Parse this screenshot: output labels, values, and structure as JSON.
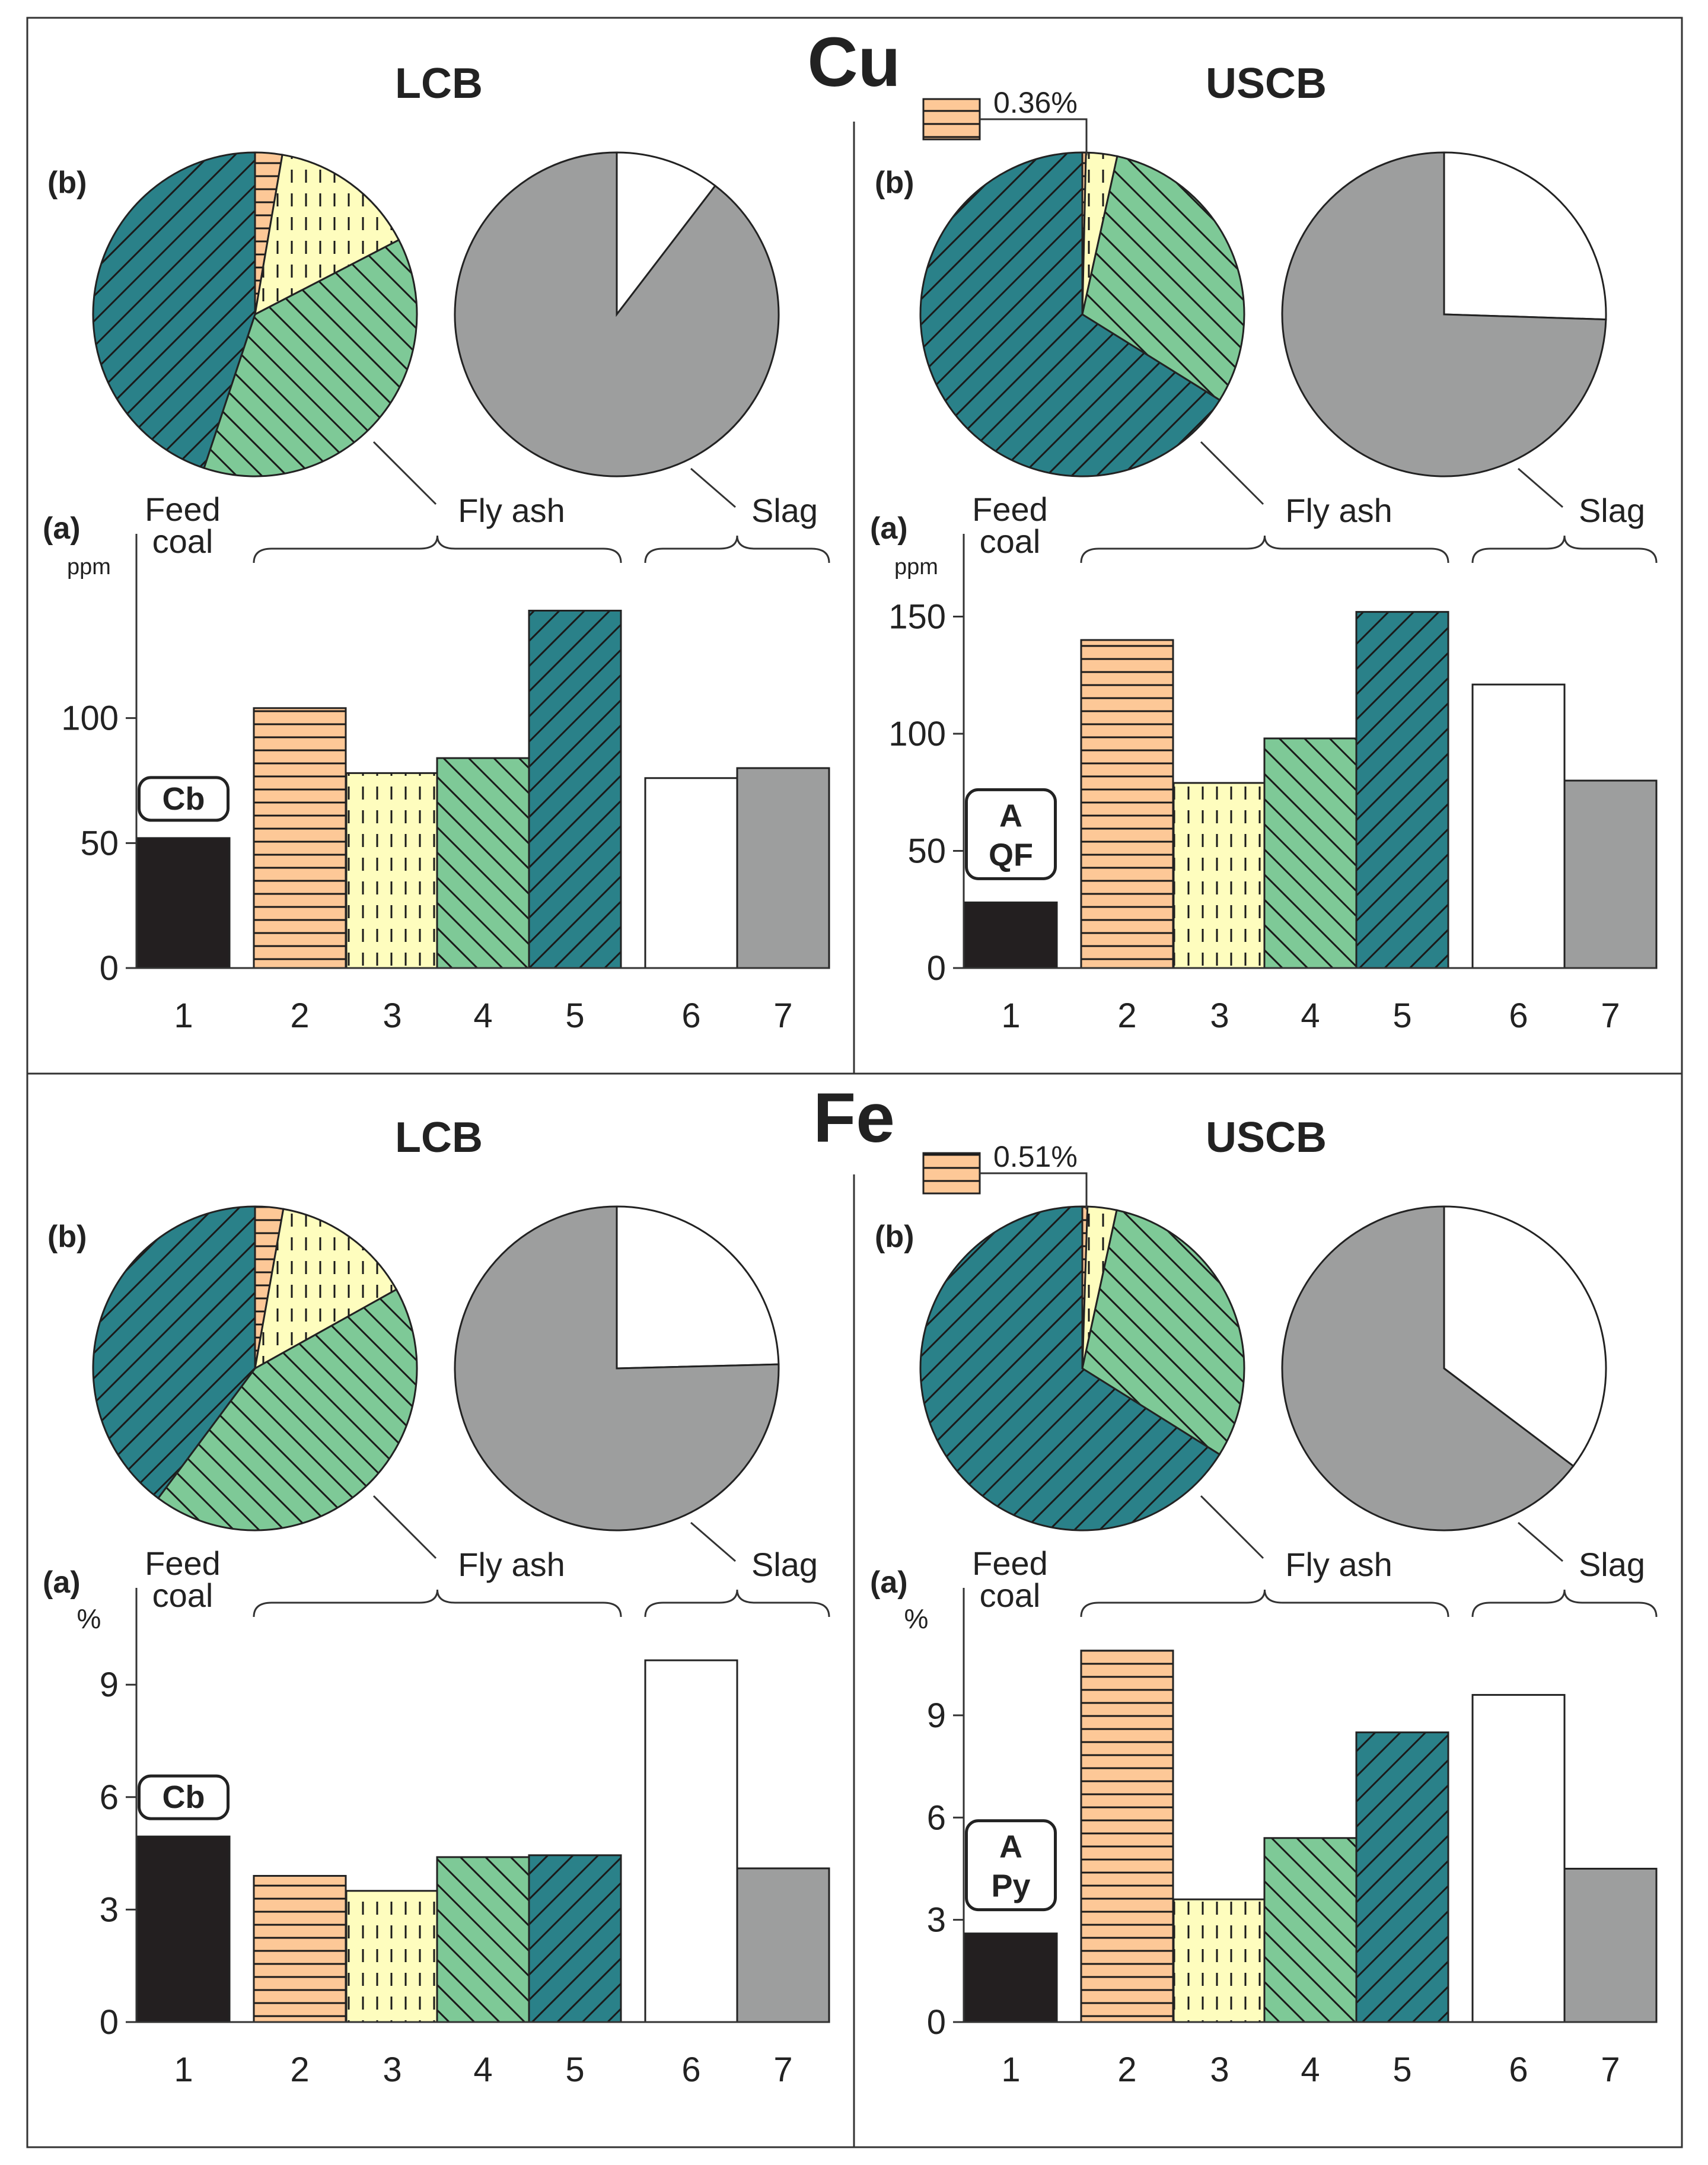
{
  "figure": {
    "sections": [
      {
        "element": "Cu",
        "regions": [
          "LCB",
          "USCB"
        ]
      },
      {
        "element": "Fe",
        "regions": [
          "LCB",
          "USCB"
        ]
      }
    ]
  },
  "labels": {
    "pie_panel": "(b)",
    "bar_panel": "(a)",
    "feed_coal_line1": "Feed",
    "feed_coal_line2": "coal",
    "fly_ash": "Fly ash",
    "slag": "Slag"
  },
  "colors": {
    "feed_coal": "#231f20",
    "sample2": "#fdc897",
    "sample3": "#fefdbe",
    "sample4": "#7ec997",
    "sample5": "#2a8189",
    "sample6": "#ffffff",
    "sample7": "#9d9e9e"
  },
  "chart_data": [
    {
      "id": "cu-lcb",
      "type": "bar",
      "element": "Cu",
      "region": "LCB",
      "unit": "ppm",
      "ylim": [
        0,
        150
      ],
      "yticks": [
        0,
        50,
        100
      ],
      "ytick_labels": [
        "0",
        "50",
        "100"
      ],
      "categories": [
        "1",
        "2",
        "3",
        "4",
        "5",
        "6",
        "7"
      ],
      "values": [
        52,
        104,
        78,
        84,
        143,
        76,
        80
      ],
      "badge": [
        "Cb"
      ],
      "pies": {
        "fly_ash": [
          {
            "sample": "2",
            "value": 2.7
          },
          {
            "sample": "3",
            "value": 14.7
          },
          {
            "sample": "4",
            "value": 37.7
          },
          {
            "sample": "5",
            "value": 44.9
          }
        ],
        "slag": [
          {
            "sample": "6",
            "value": 10.4
          },
          {
            "sample": "7",
            "value": 89.6
          }
        ]
      }
    },
    {
      "id": "cu-uscb",
      "type": "bar",
      "element": "Cu",
      "region": "USCB",
      "unit": "ppm",
      "ylim": [
        0,
        160
      ],
      "yticks": [
        0,
        50,
        100,
        150
      ],
      "ytick_labels": [
        "0",
        "50",
        "100",
        "150"
      ],
      "categories": [
        "1",
        "2",
        "3",
        "4",
        "5",
        "6",
        "7"
      ],
      "values": [
        28,
        140,
        79,
        98,
        152,
        121,
        80
      ],
      "badge": [
        "A",
        "QF"
      ],
      "callout": "0.36%",
      "pies": {
        "fly_ash": [
          {
            "sample": "2",
            "value": 0.36
          },
          {
            "sample": "3",
            "value": 3.1
          },
          {
            "sample": "4",
            "value": 30.4
          },
          {
            "sample": "5",
            "value": 66.1
          }
        ],
        "slag": [
          {
            "sample": "6",
            "value": 25.5
          },
          {
            "sample": "7",
            "value": 74.5
          }
        ]
      }
    },
    {
      "id": "fe-lcb",
      "type": "bar",
      "element": "Fe",
      "region": "LCB",
      "unit": "%",
      "ylim": [
        0,
        10
      ],
      "yticks": [
        0,
        3,
        6,
        9
      ],
      "ytick_labels": [
        "0",
        "3",
        "6",
        "9"
      ],
      "categories": [
        "1",
        "2",
        "3",
        "4",
        "5",
        "6",
        "7"
      ],
      "values": [
        4.95,
        3.9,
        3.5,
        4.4,
        4.45,
        9.65,
        4.1
      ],
      "badge": [
        "Cb"
      ],
      "pies": {
        "fly_ash": [
          {
            "sample": "2",
            "value": 2.8
          },
          {
            "sample": "3",
            "value": 14.1
          },
          {
            "sample": "4",
            "value": 43.3
          },
          {
            "sample": "5",
            "value": 39.8
          }
        ],
        "slag": [
          {
            "sample": "6",
            "value": 24.6
          },
          {
            "sample": "7",
            "value": 75.4
          }
        ]
      }
    },
    {
      "id": "fe-uscb",
      "type": "bar",
      "element": "Fe",
      "region": "USCB",
      "unit": "%",
      "ylim": [
        0,
        11
      ],
      "yticks": [
        0,
        3,
        6,
        9
      ],
      "ytick_labels": [
        "0",
        "3",
        "6",
        "9"
      ],
      "categories": [
        "1",
        "2",
        "3",
        "4",
        "5",
        "6",
        "7"
      ],
      "values": [
        2.6,
        10.9,
        3.6,
        5.4,
        8.5,
        9.6,
        4.5
      ],
      "badge": [
        "A",
        "Py"
      ],
      "callout": "0.51%",
      "pies": {
        "fly_ash": [
          {
            "sample": "2",
            "value": 0.51
          },
          {
            "sample": "3",
            "value": 2.9
          },
          {
            "sample": "4",
            "value": 30.5
          },
          {
            "sample": "5",
            "value": 66.1
          }
        ],
        "slag": [
          {
            "sample": "6",
            "value": 35.3
          },
          {
            "sample": "7",
            "value": 64.7
          }
        ]
      }
    }
  ]
}
